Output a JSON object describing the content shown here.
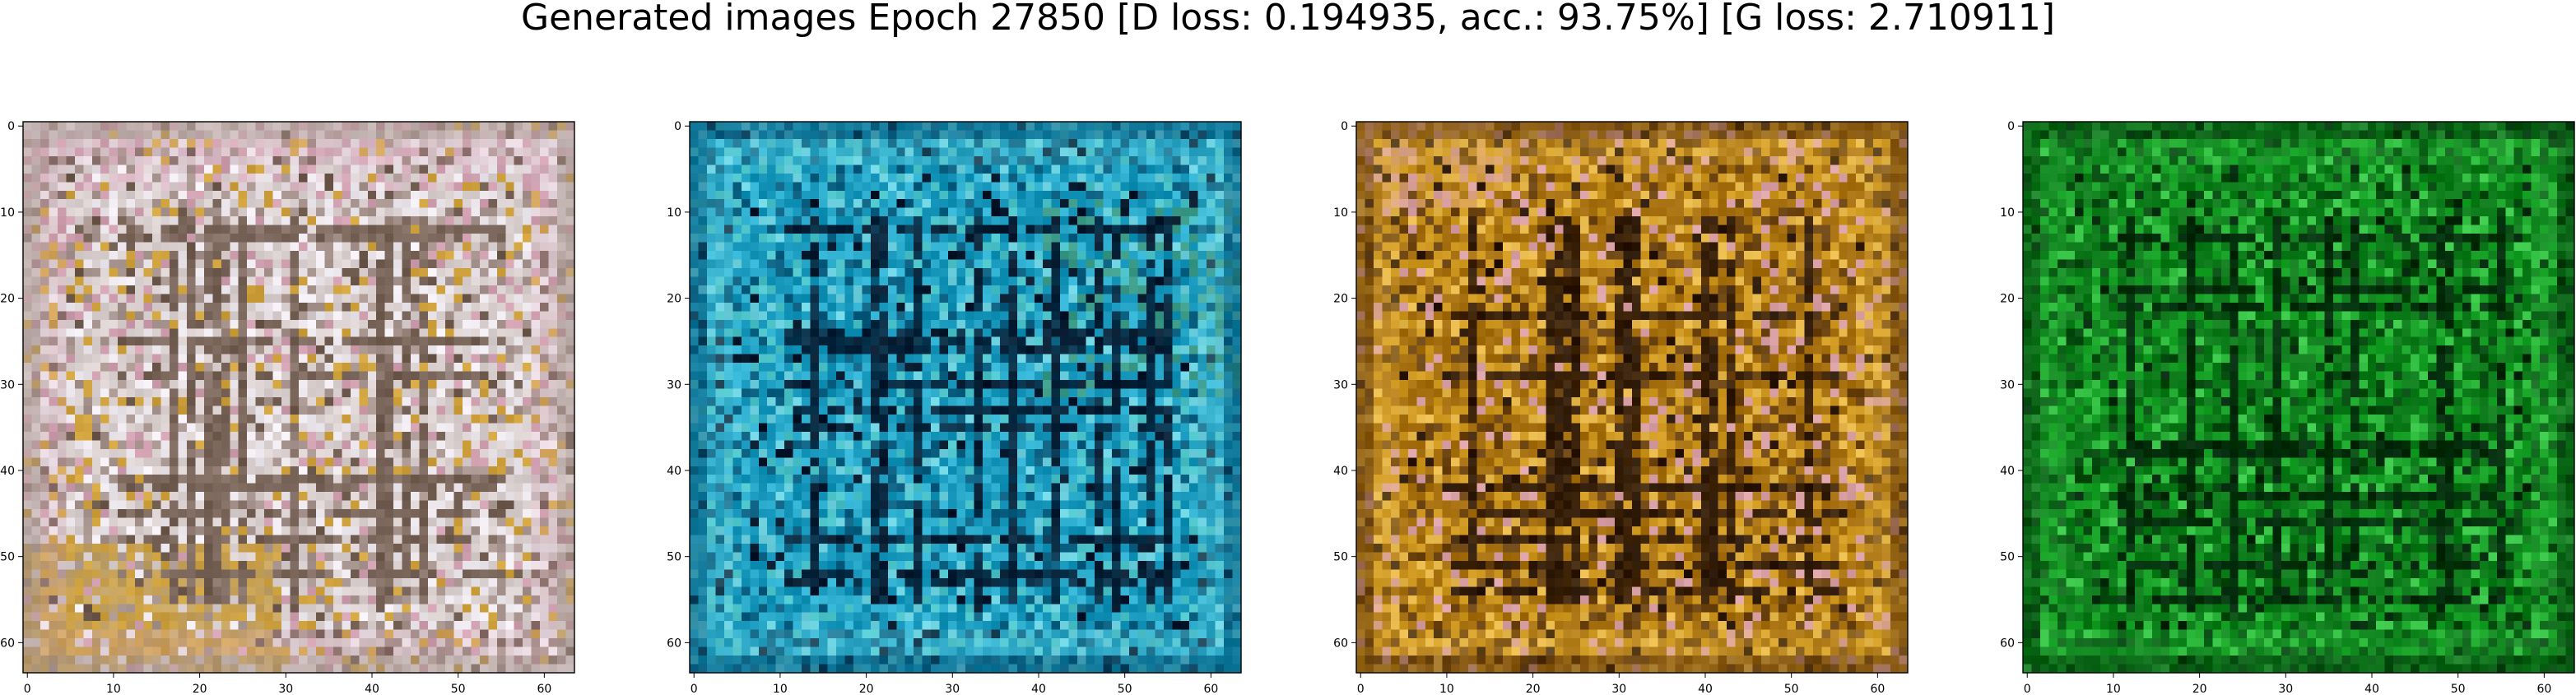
{
  "figure": {
    "title": "Generated images Epoch 27850 [D loss: 0.194935, acc.: 93.75%] [G loss: 2.710911]"
  },
  "axes_ticks": {
    "x": [
      "0",
      "10",
      "20",
      "30",
      "40",
      "50",
      "60"
    ],
    "y": [
      "0",
      "10",
      "20",
      "30",
      "40",
      "50",
      "60"
    ]
  },
  "panels": [
    {
      "name": "sample-1",
      "palette": [
        "#6f5a4e",
        "#a7938d",
        "#d9cfcf",
        "#eee9ee",
        "#cf9faf",
        "#bfa16a",
        "#d0a23d"
      ],
      "dominant_tone": "pale-gray-pink-with-gold-bottom"
    },
    {
      "name": "sample-2",
      "palette": [
        "#06182c",
        "#0a5e80",
        "#1192b6",
        "#31b1d1",
        "#6ed1df",
        "#3c9a88",
        "#4cc2c9"
      ],
      "dominant_tone": "cyan-blue"
    },
    {
      "name": "sample-3",
      "palette": [
        "#2a1708",
        "#6c4412",
        "#a56f0f",
        "#cf9820",
        "#e6b74a",
        "#d08c35",
        "#d9a0a6"
      ],
      "dominant_tone": "golden-brown"
    },
    {
      "name": "sample-4",
      "palette": [
        "#01280b",
        "#064c11",
        "#0b7a19",
        "#18a328",
        "#38c446",
        "#55d35e",
        "#107c1d"
      ],
      "dominant_tone": "green"
    }
  ]
}
